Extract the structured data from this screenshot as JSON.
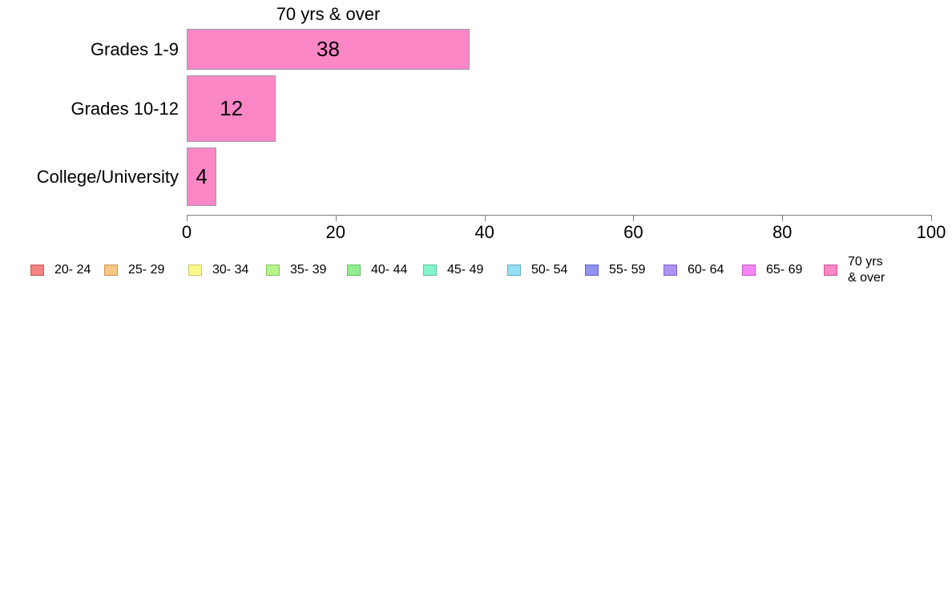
{
  "chart_data": {
    "type": "bar",
    "orientation": "horizontal",
    "title": "70 yrs & over",
    "categories": [
      "Grades 1-9",
      "Grades 10-12",
      "College/University"
    ],
    "values": [
      38,
      12,
      4
    ],
    "bar_labels": [
      "38",
      "12",
      "4"
    ],
    "xlabel": "",
    "ylabel": "",
    "xlim": [
      0,
      100
    ],
    "x_ticks": [
      0,
      20,
      40,
      60,
      80,
      100
    ],
    "grid": "off",
    "legend_position": "bottom",
    "bar_color": "#FB87C7",
    "bar_border_color": "#9B9B9B",
    "axis_color": "#808080",
    "legend": [
      {
        "label": "20- 24",
        "color": "#F58282",
        "border": "#C65A5A"
      },
      {
        "label": "25- 29",
        "color": "#F8C585",
        "border": "#C89756"
      },
      {
        "label": "30- 34",
        "color": "#F9F98E",
        "border": "#C9C95F"
      },
      {
        "label": "35- 39",
        "color": "#B6F48C",
        "border": "#86C45D"
      },
      {
        "label": "40- 44",
        "color": "#90EE90",
        "border": "#60BE60"
      },
      {
        "label": "45- 49",
        "color": "#87F3CC",
        "border": "#57C39C"
      },
      {
        "label": "50- 54",
        "color": "#93DDF7",
        "border": "#63ADC7"
      },
      {
        "label": "55- 59",
        "color": "#9193F3",
        "border": "#6163C3"
      },
      {
        "label": "60- 64",
        "color": "#AE93F3",
        "border": "#7E63C3"
      },
      {
        "label": "65- 69",
        "color": "#F487F4",
        "border": "#C457C4"
      },
      {
        "label": "70 yrs\n& over",
        "color": "#FB87C7",
        "border": "#CB5797"
      }
    ]
  }
}
